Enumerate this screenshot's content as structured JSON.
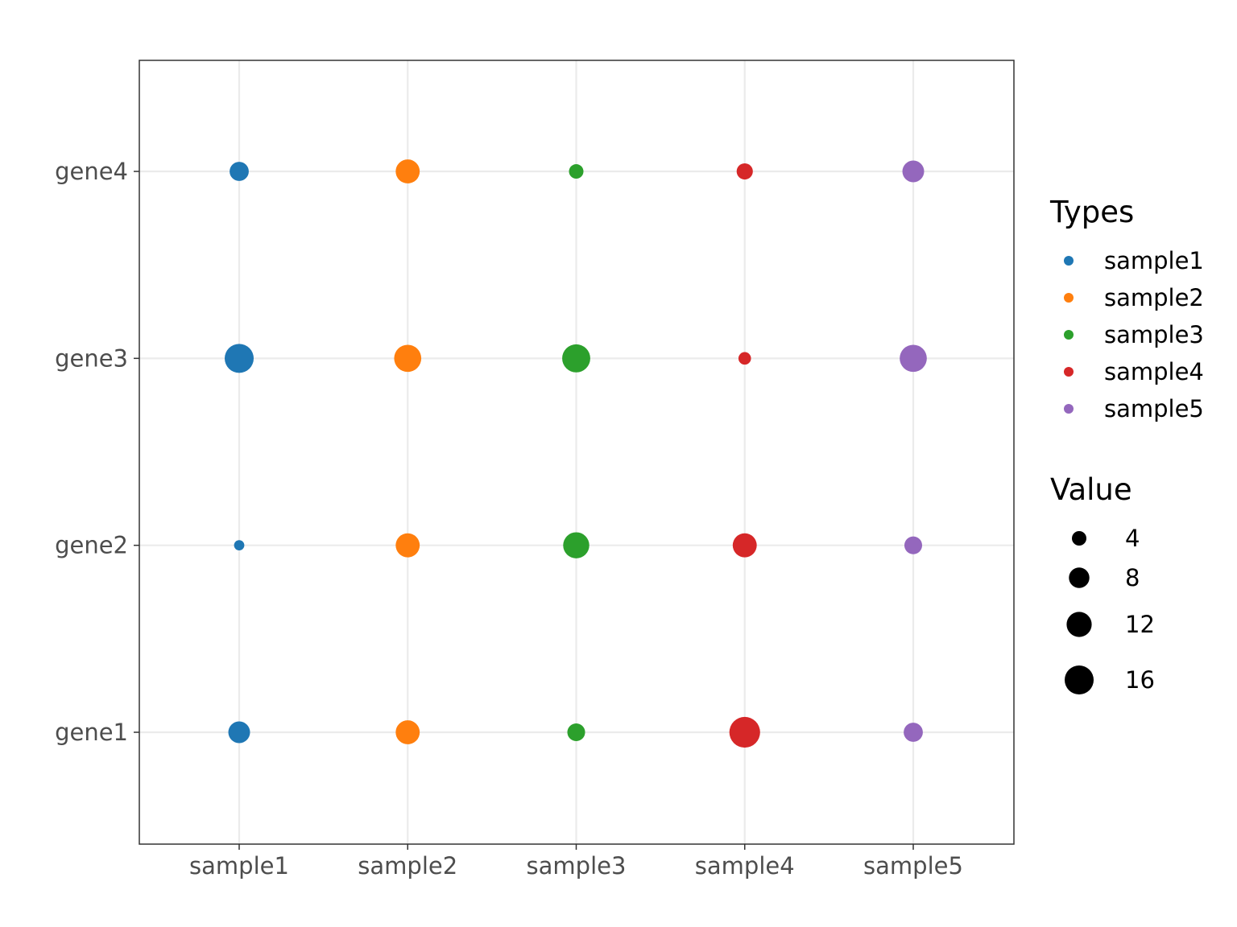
{
  "chart_data": {
    "type": "scatter",
    "subtype": "dot-matrix",
    "x_categories": [
      "sample1",
      "sample2",
      "sample3",
      "sample4",
      "sample5"
    ],
    "y_categories": [
      "gene1",
      "gene2",
      "gene3",
      "gene4"
    ],
    "points": [
      {
        "x": "sample1",
        "y": "gene1",
        "value": 9,
        "type": "sample1"
      },
      {
        "x": "sample2",
        "y": "gene1",
        "value": 11,
        "type": "sample2"
      },
      {
        "x": "sample3",
        "y": "gene1",
        "value": 6,
        "type": "sample3"
      },
      {
        "x": "sample4",
        "y": "gene1",
        "value": 18,
        "type": "sample4"
      },
      {
        "x": "sample5",
        "y": "gene1",
        "value": 7,
        "type": "sample5"
      },
      {
        "x": "sample1",
        "y": "gene2",
        "value": 2,
        "type": "sample1"
      },
      {
        "x": "sample2",
        "y": "gene2",
        "value": 11,
        "type": "sample2"
      },
      {
        "x": "sample3",
        "y": "gene2",
        "value": 13,
        "type": "sample3"
      },
      {
        "x": "sample4",
        "y": "gene2",
        "value": 11,
        "type": "sample4"
      },
      {
        "x": "sample5",
        "y": "gene2",
        "value": 6,
        "type": "sample5"
      },
      {
        "x": "sample1",
        "y": "gene3",
        "value": 16,
        "type": "sample1"
      },
      {
        "x": "sample2",
        "y": "gene3",
        "value": 14,
        "type": "sample2"
      },
      {
        "x": "sample3",
        "y": "gene3",
        "value": 15,
        "type": "sample3"
      },
      {
        "x": "sample4",
        "y": "gene3",
        "value": 3,
        "type": "sample4"
      },
      {
        "x": "sample5",
        "y": "gene3",
        "value": 14,
        "type": "sample5"
      },
      {
        "x": "sample1",
        "y": "gene4",
        "value": 7,
        "type": "sample1"
      },
      {
        "x": "sample2",
        "y": "gene4",
        "value": 11,
        "type": "sample2"
      },
      {
        "x": "sample3",
        "y": "gene4",
        "value": 4,
        "type": "sample3"
      },
      {
        "x": "sample4",
        "y": "gene4",
        "value": 5,
        "type": "sample4"
      },
      {
        "x": "sample5",
        "y": "gene4",
        "value": 9,
        "type": "sample5"
      }
    ],
    "color_legend": {
      "title": "Types",
      "entries": [
        {
          "label": "sample1",
          "color": "#1f77b4"
        },
        {
          "label": "sample2",
          "color": "#ff7f0e"
        },
        {
          "label": "sample3",
          "color": "#2ca02c"
        },
        {
          "label": "sample4",
          "color": "#d62728"
        },
        {
          "label": "sample5",
          "color": "#9467bd"
        }
      ]
    },
    "size_legend": {
      "title": "Value",
      "entries": [
        {
          "label": "4",
          "value": 4
        },
        {
          "label": "8",
          "value": 8
        },
        {
          "label": "12",
          "value": 12
        },
        {
          "label": "16",
          "value": 16
        }
      ]
    },
    "grid": true,
    "legend_position": "right"
  }
}
